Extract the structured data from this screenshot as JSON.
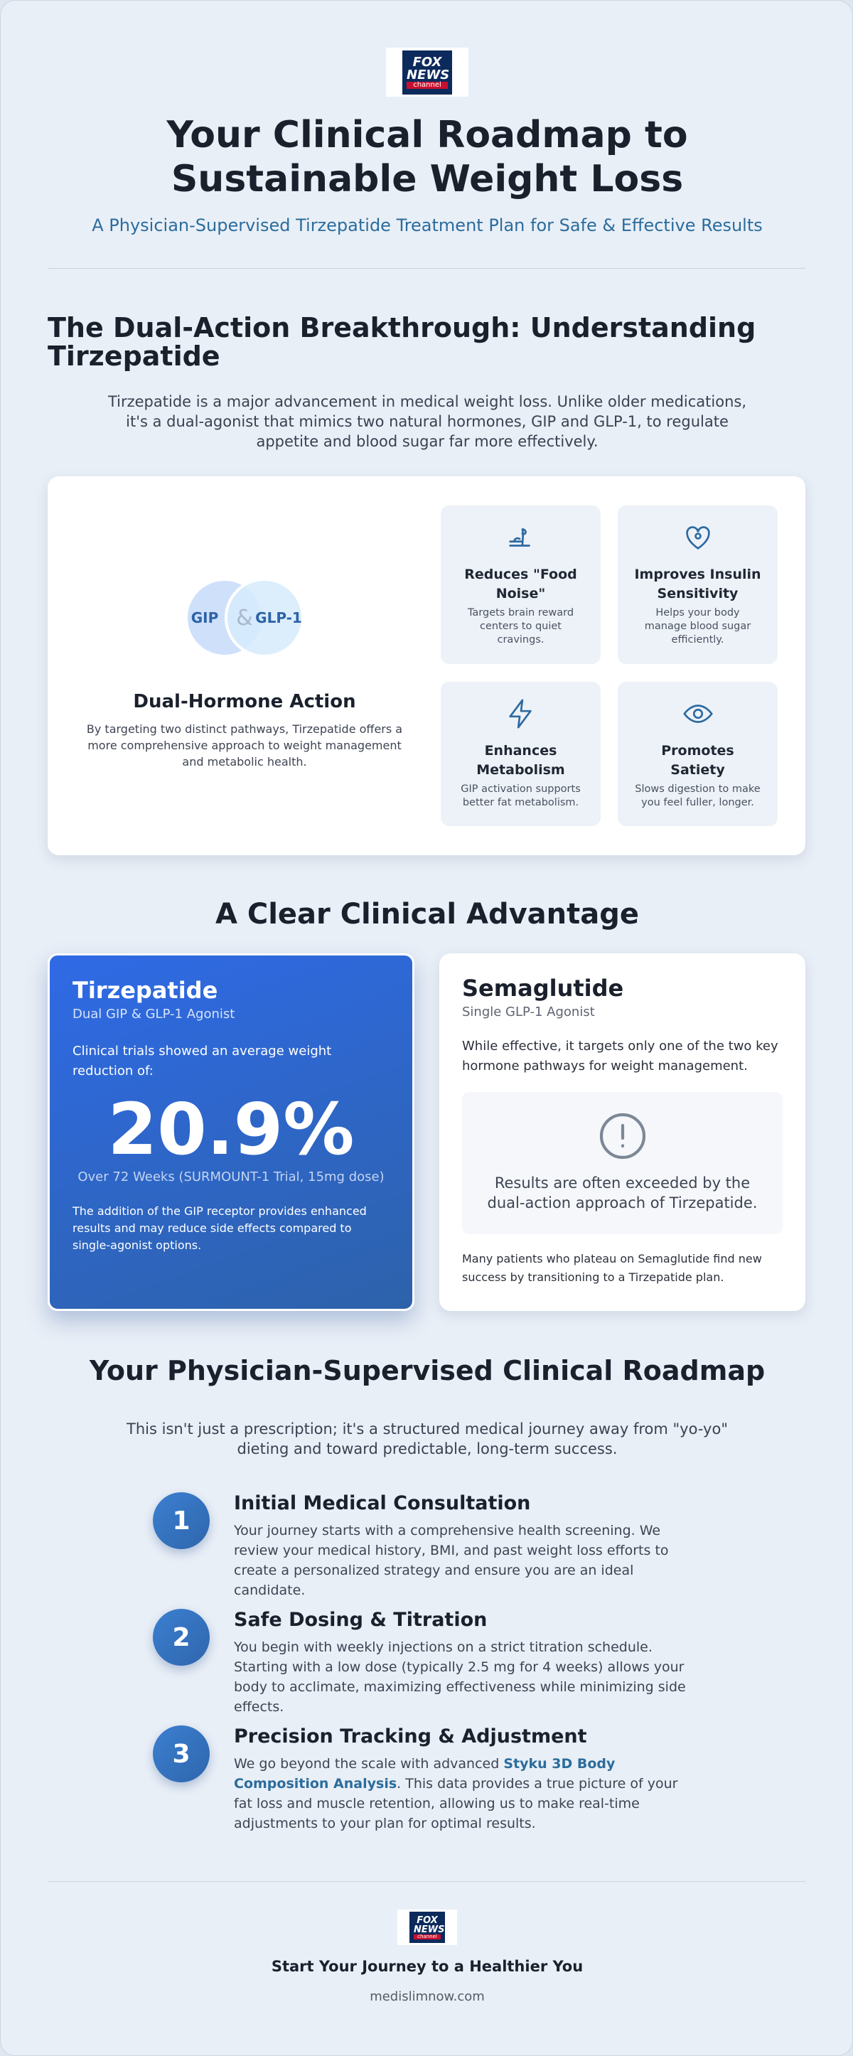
{
  "header": {
    "logo": {
      "line1": "FOX",
      "line2": "NEWS",
      "line3": "channel"
    },
    "title": "Your Clinical Roadmap to Sustainable Weight Loss",
    "subtitle": "A Physician-Supervised Tirzepatide Treatment Plan for Safe & Effective Results"
  },
  "intro": {
    "heading": "The Dual-Action Breakthrough: Understanding Tirzepatide",
    "paragraph": "Tirzepatide is a major advancement in medical weight loss. Unlike older medications, it's a dual-agonist that mimics two natural hormones, GIP and GLP-1, to regulate appetite and blood sugar far more effectively."
  },
  "dual_card": {
    "venn": {
      "left": "GIP",
      "symbol": "&",
      "right": "GLP-1"
    },
    "title": "Dual-Hormone Action",
    "description": "By targeting two distinct pathways, Tirzepatide offers a more comprehensive approach to weight management and metabolic health.",
    "features": [
      {
        "title": "Reduces \"Food Noise\"",
        "description": "Targets brain reward centers to quiet cravings."
      },
      {
        "title": "Improves Insulin Sensitivity",
        "description": "Helps your body manage blood sugar efficiently."
      },
      {
        "title": "Enhances Metabolism",
        "description": "GIP activation supports better fat metabolism."
      },
      {
        "title": "Promotes Satiety",
        "description": "Slows digestion to make you feel fuller, longer."
      }
    ]
  },
  "comparison": {
    "heading": "A Clear Clinical Advantage",
    "tirzepatide": {
      "name": "Tirzepatide",
      "subtitle": "Dual GIP & GLP-1 Agonist",
      "lead": "Clinical trials showed an average weight reduction of:",
      "stat": "20.9%",
      "stat_note": "Over 72 Weeks (SURMOUNT-1 Trial, 15mg dose)",
      "body": "The addition of the GIP receptor provides enhanced results and may reduce side effects compared to single-agonist options."
    },
    "semaglutide": {
      "name": "Semaglutide",
      "subtitle": "Single GLP-1 Agonist",
      "lead": "While effective, it targets only one of the two key hormone pathways for weight management.",
      "callout": "Results are often exceeded by the dual-action approach of Tirzepatide.",
      "footer": "Many patients who plateau on Semaglutide find new success by transitioning to a Tirzepatide plan."
    }
  },
  "roadmap": {
    "heading": "Your Physician-Supervised Clinical Roadmap",
    "intro": "This isn't just a prescription; it's a structured medical journey away from \"yo-yo\" dieting and toward predictable, long-term success.",
    "steps": [
      {
        "number": "1",
        "title": "Initial Medical Consultation",
        "text": "Your journey starts with a comprehensive health screening. We review your medical history, BMI, and past weight loss efforts to create a personalized strategy and ensure you are an ideal candidate."
      },
      {
        "number": "2",
        "title": "Safe Dosing & Titration",
        "text": "You begin with weekly injections on a strict titration schedule. Starting with a low dose (typically 2.5 mg for 4 weeks) allows your body to acclimate, maximizing effectiveness while minimizing side effects."
      },
      {
        "number": "3",
        "title": "Precision Tracking & Adjustment",
        "text_before": "We go beyond the scale with advanced ",
        "highlight": "Styku 3D Body Composition Analysis",
        "text_after": ". This data provides a true picture of your fat loss and muscle retention, allowing us to make real-time adjustments to your plan for optimal results."
      }
    ]
  },
  "footer": {
    "logo": {
      "line1": "FOX",
      "line2": "NEWS",
      "line3": "channel"
    },
    "cta": "Start Your Journey to a Healthier You",
    "url": "medislimnow.com"
  }
}
